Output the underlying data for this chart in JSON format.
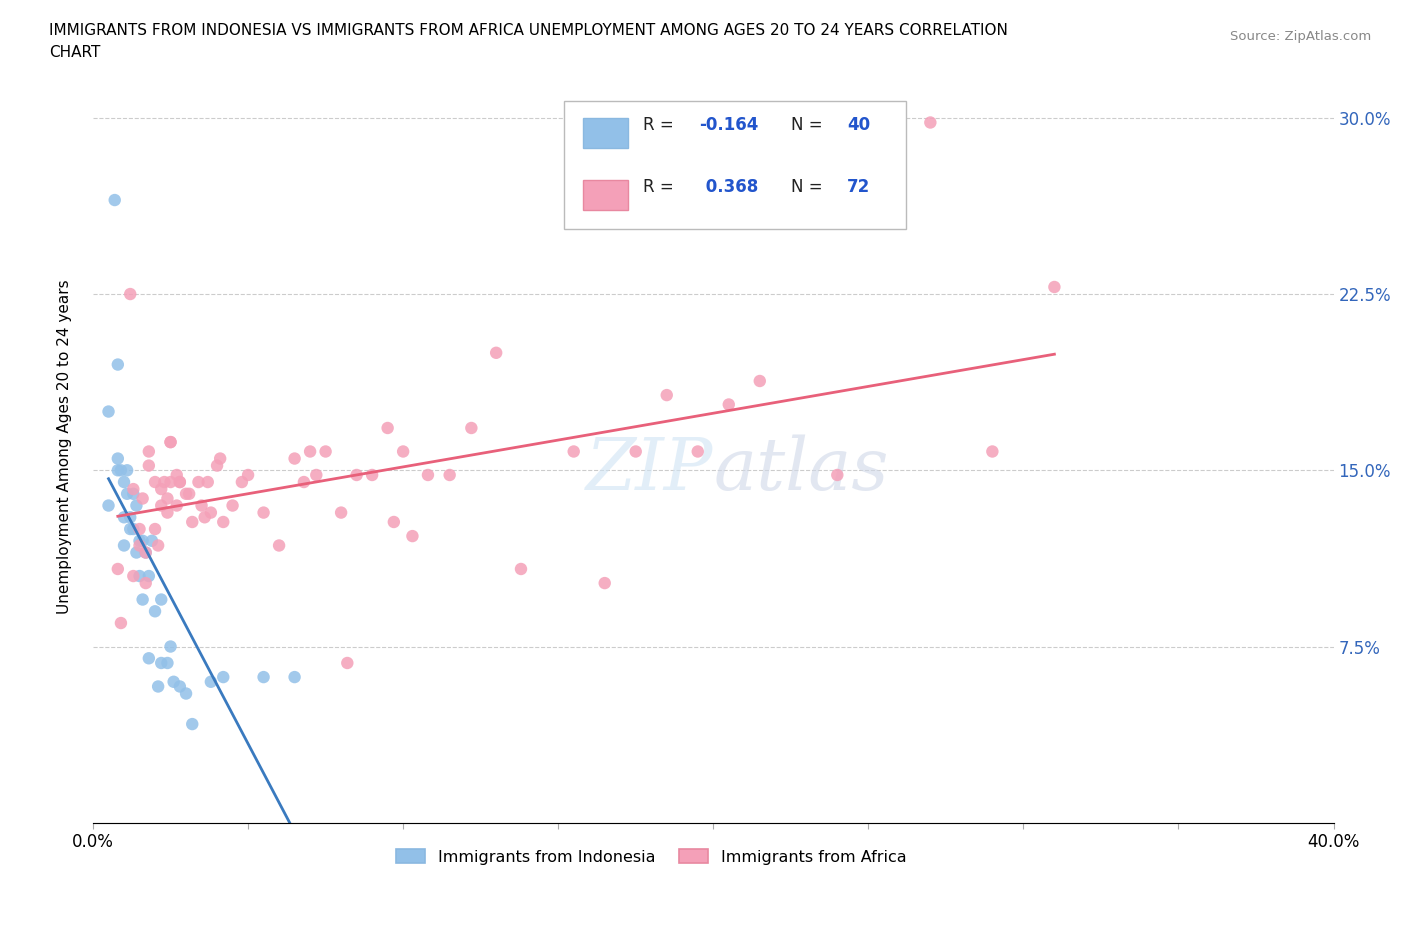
{
  "title_line1": "IMMIGRANTS FROM INDONESIA VS IMMIGRANTS FROM AFRICA UNEMPLOYMENT AMONG AGES 20 TO 24 YEARS CORRELATION",
  "title_line2": "CHART",
  "source": "Source: ZipAtlas.com",
  "ylabel": "Unemployment Among Ages 20 to 24 years",
  "xlim": [
    0.0,
    0.4
  ],
  "ylim": [
    0.0,
    0.32
  ],
  "watermark": "ZIPatlas",
  "indonesia_R": -0.164,
  "indonesia_N": 40,
  "africa_R": 0.368,
  "africa_N": 72,
  "indonesia_color": "#92c0e8",
  "africa_color": "#f4a0b8",
  "indonesia_line_color": "#3a7abf",
  "africa_line_color": "#e8607a",
  "legend_label_indonesia": "Immigrants from Indonesia",
  "legend_label_africa": "Immigrants from Africa",
  "indonesia_x": [
    0.005,
    0.005,
    0.007,
    0.008,
    0.008,
    0.008,
    0.009,
    0.01,
    0.01,
    0.01,
    0.011,
    0.011,
    0.012,
    0.012,
    0.013,
    0.013,
    0.014,
    0.014,
    0.015,
    0.015,
    0.016,
    0.016,
    0.017,
    0.018,
    0.018,
    0.019,
    0.02,
    0.021,
    0.022,
    0.022,
    0.024,
    0.025,
    0.026,
    0.028,
    0.03,
    0.032,
    0.038,
    0.042,
    0.055,
    0.065
  ],
  "indonesia_y": [
    0.175,
    0.135,
    0.265,
    0.195,
    0.15,
    0.155,
    0.15,
    0.145,
    0.13,
    0.118,
    0.15,
    0.14,
    0.13,
    0.125,
    0.14,
    0.125,
    0.135,
    0.115,
    0.12,
    0.105,
    0.12,
    0.095,
    0.115,
    0.105,
    0.07,
    0.12,
    0.09,
    0.058,
    0.095,
    0.068,
    0.068,
    0.075,
    0.06,
    0.058,
    0.055,
    0.042,
    0.06,
    0.062,
    0.062,
    0.062
  ],
  "africa_x": [
    0.008,
    0.009,
    0.012,
    0.013,
    0.013,
    0.015,
    0.015,
    0.016,
    0.017,
    0.017,
    0.018,
    0.018,
    0.02,
    0.02,
    0.021,
    0.022,
    0.022,
    0.023,
    0.024,
    0.024,
    0.025,
    0.025,
    0.025,
    0.027,
    0.027,
    0.028,
    0.028,
    0.03,
    0.031,
    0.032,
    0.034,
    0.035,
    0.036,
    0.037,
    0.038,
    0.04,
    0.041,
    0.042,
    0.045,
    0.048,
    0.05,
    0.055,
    0.06,
    0.065,
    0.068,
    0.07,
    0.072,
    0.075,
    0.08,
    0.082,
    0.085,
    0.09,
    0.095,
    0.097,
    0.1,
    0.103,
    0.108,
    0.115,
    0.122,
    0.13,
    0.138,
    0.155,
    0.165,
    0.175,
    0.185,
    0.195,
    0.205,
    0.215,
    0.24,
    0.27,
    0.29,
    0.31
  ],
  "africa_y": [
    0.108,
    0.085,
    0.225,
    0.142,
    0.105,
    0.125,
    0.118,
    0.138,
    0.115,
    0.102,
    0.158,
    0.152,
    0.145,
    0.125,
    0.118,
    0.142,
    0.135,
    0.145,
    0.138,
    0.132,
    0.145,
    0.162,
    0.162,
    0.148,
    0.135,
    0.145,
    0.145,
    0.14,
    0.14,
    0.128,
    0.145,
    0.135,
    0.13,
    0.145,
    0.132,
    0.152,
    0.155,
    0.128,
    0.135,
    0.145,
    0.148,
    0.132,
    0.118,
    0.155,
    0.145,
    0.158,
    0.148,
    0.158,
    0.132,
    0.068,
    0.148,
    0.148,
    0.168,
    0.128,
    0.158,
    0.122,
    0.148,
    0.148,
    0.168,
    0.2,
    0.108,
    0.158,
    0.102,
    0.158,
    0.182,
    0.158,
    0.178,
    0.188,
    0.148,
    0.298,
    0.158,
    0.228
  ]
}
